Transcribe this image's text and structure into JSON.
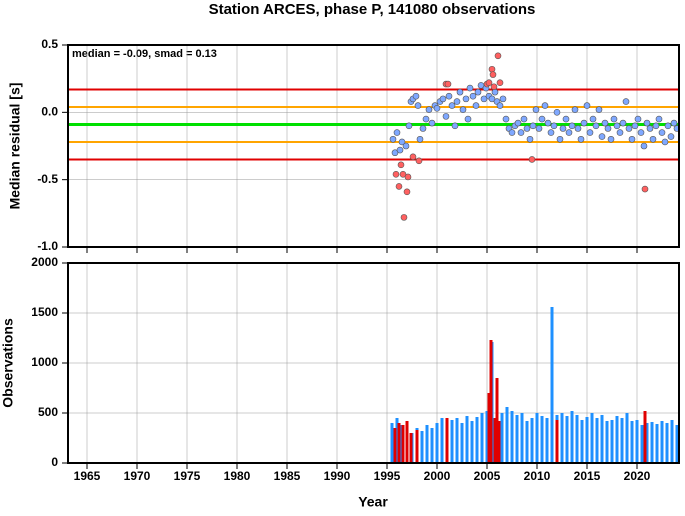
{
  "chart_data": [
    {
      "type": "scatter",
      "title": "Station ARCES, phase P, 141080 observations",
      "ylabel": "Median residual [s]",
      "annotation": "median = -0.09, smad = 0.13",
      "xlim": [
        1963.1,
        2024.2
      ],
      "xticks": [
        1965,
        1970,
        1975,
        1980,
        1985,
        1990,
        1995,
        2000,
        2005,
        2010,
        2015,
        2020
      ],
      "ylim": [
        -1.0,
        0.5
      ],
      "yticks": [
        0.5,
        {
          "value": 0.0,
          "label": "0.0"
        },
        -0.5,
        {
          "value": -1.0,
          "label": "-1.0"
        }
      ],
      "grid": true,
      "hlines": [
        {
          "value": 0.17,
          "color": "#e00000"
        },
        {
          "value": 0.04,
          "color": "#ffa500"
        },
        {
          "value": -0.09,
          "color": "#00e000"
        },
        {
          "value": -0.22,
          "color": "#ffa500"
        },
        {
          "value": -0.35,
          "color": "#e00000"
        }
      ],
      "series": [
        {
          "color": "#7fa8ff",
          "x": [
            1995.6,
            1995.8,
            1996.0,
            1996.3,
            1996.5,
            1996.9,
            1997.2,
            1997.4,
            1997.6,
            1997.9,
            1998.1,
            1998.3,
            1998.6,
            1998.9,
            1999.2,
            1999.5,
            1999.8,
            2000.0,
            2000.3,
            2000.6,
            2000.9,
            2001.2,
            2001.5,
            2001.8,
            2002.0,
            2002.3,
            2002.6,
            2002.9,
            2003.1,
            2003.3,
            2003.6,
            2003.9,
            2004.1,
            2004.4,
            2004.7,
            2004.9,
            2005.2,
            2005.5,
            2005.8,
            2006.0,
            2006.3,
            2006.6,
            2006.9,
            2007.2,
            2007.5,
            2007.8,
            2008.1,
            2008.4,
            2008.7,
            2009.0,
            2009.3,
            2009.6,
            2009.9,
            2010.2,
            2010.5,
            2010.8,
            2011.1,
            2011.4,
            2011.7,
            2012.0,
            2012.3,
            2012.6,
            2012.9,
            2013.2,
            2013.5,
            2013.8,
            2014.1,
            2014.4,
            2014.7,
            2015.0,
            2015.3,
            2015.6,
            2015.9,
            2016.2,
            2016.5,
            2016.8,
            2017.1,
            2017.4,
            2017.7,
            2018.0,
            2018.3,
            2018.6,
            2018.9,
            2019.2,
            2019.5,
            2019.8,
            2020.1,
            2020.4,
            2020.7,
            2021.0,
            2021.3,
            2021.6,
            2021.9,
            2022.2,
            2022.5,
            2022.8,
            2023.1,
            2023.4,
            2023.7,
            2024.0
          ],
          "values": [
            -0.2,
            -0.3,
            -0.15,
            -0.28,
            -0.22,
            -0.25,
            -0.1,
            0.08,
            0.1,
            0.12,
            0.05,
            -0.2,
            -0.12,
            -0.05,
            0.02,
            -0.08,
            0.05,
            0.03,
            0.08,
            0.1,
            -0.03,
            0.12,
            0.05,
            -0.1,
            0.08,
            0.15,
            0.02,
            0.1,
            -0.05,
            0.18,
            0.12,
            0.05,
            0.15,
            0.2,
            0.1,
            0.18,
            0.12,
            0.1,
            0.15,
            0.08,
            0.05,
            0.1,
            -0.05,
            -0.12,
            -0.15,
            -0.1,
            -0.08,
            -0.15,
            -0.05,
            -0.12,
            -0.2,
            -0.1,
            0.02,
            -0.12,
            -0.05,
            0.05,
            -0.08,
            -0.15,
            -0.1,
            0.0,
            -0.2,
            -0.12,
            -0.05,
            -0.15,
            -0.1,
            0.02,
            -0.12,
            -0.2,
            -0.08,
            0.05,
            -0.15,
            -0.05,
            -0.1,
            0.02,
            -0.18,
            -0.08,
            -0.12,
            -0.2,
            -0.05,
            -0.1,
            -0.15,
            -0.08,
            0.08,
            -0.12,
            -0.2,
            -0.1,
            -0.05,
            -0.15,
            -0.25,
            -0.08,
            -0.12,
            -0.2,
            -0.1,
            -0.05,
            -0.15,
            -0.22,
            -0.1,
            -0.18,
            -0.08,
            -0.12
          ]
        },
        {
          "color": "#ff6060",
          "x": [
            1995.9,
            1996.2,
            1996.4,
            1996.6,
            1996.7,
            1997.0,
            1997.1,
            1997.6,
            1998.2,
            2000.9,
            2001.1,
            2005.0,
            2005.2,
            2005.5,
            2005.6,
            2005.7,
            2006.1,
            2006.3,
            2009.5,
            2020.8
          ],
          "values": [
            -0.46,
            -0.55,
            -0.39,
            -0.46,
            -0.78,
            -0.59,
            -0.48,
            -0.33,
            -0.36,
            0.21,
            0.21,
            0.21,
            0.22,
            0.32,
            0.28,
            0.19,
            0.42,
            0.22,
            -0.35,
            -0.57
          ]
        }
      ]
    },
    {
      "type": "bar",
      "ylabel": "Observations",
      "xlabel": "Year",
      "xlim": [
        1963.1,
        2024.2
      ],
      "xticks": [
        1965,
        1970,
        1975,
        1980,
        1985,
        1990,
        1995,
        2000,
        2005,
        2010,
        2015,
        2020
      ],
      "ylim": [
        0,
        2000
      ],
      "yticks": [
        0,
        500,
        1000,
        1500,
        2000
      ],
      "grid": true,
      "series": [
        {
          "color": "#1e90ff",
          "x": [
            1995.5,
            1996.0,
            1996.5,
            1997.0,
            1997.5,
            1998.0,
            1998.5,
            1999.0,
            1999.5,
            2000.0,
            2000.5,
            2001.0,
            2001.5,
            2002.0,
            2002.5,
            2003.0,
            2003.5,
            2004.0,
            2004.5,
            2005.0,
            2005.5,
            2006.0,
            2006.5,
            2007.0,
            2007.5,
            2008.0,
            2008.5,
            2009.0,
            2009.5,
            2010.0,
            2010.5,
            2011.0,
            2011.5,
            2012.0,
            2012.5,
            2013.0,
            2013.5,
            2014.0,
            2014.5,
            2015.0,
            2015.5,
            2016.0,
            2016.5,
            2017.0,
            2017.5,
            2018.0,
            2018.5,
            2019.0,
            2019.5,
            2020.0,
            2020.5,
            2021.0,
            2021.5,
            2022.0,
            2022.5,
            2023.0,
            2023.5,
            2024.0
          ],
          "values": [
            400,
            450,
            380,
            420,
            300,
            350,
            320,
            380,
            350,
            400,
            450,
            400,
            430,
            450,
            400,
            470,
            420,
            460,
            500,
            520,
            1210,
            600,
            500,
            560,
            520,
            480,
            500,
            420,
            450,
            500,
            470,
            450,
            1560,
            480,
            500,
            470,
            520,
            480,
            430,
            460,
            500,
            450,
            480,
            420,
            430,
            470,
            450,
            500,
            420,
            430,
            380,
            400,
            410,
            390,
            420,
            400,
            430,
            380
          ]
        },
        {
          "color": "#e00000",
          "x": [
            1995.8,
            1996.2,
            1996.6,
            1997.0,
            1997.4,
            1998.0,
            2001.0,
            2005.2,
            2005.4,
            2005.8,
            2006.0,
            2006.2,
            2012.0,
            2020.8
          ],
          "values": [
            350,
            400,
            380,
            420,
            300,
            330,
            450,
            700,
            1230,
            450,
            850,
            420,
            430,
            520
          ]
        }
      ]
    }
  ]
}
